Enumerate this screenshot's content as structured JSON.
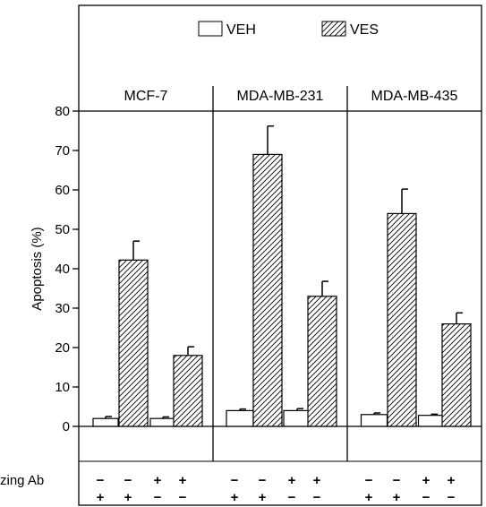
{
  "chart_data": {
    "type": "bar",
    "title": "",
    "ylabel": "Apoptosis (%)",
    "ylim": [
      0,
      80
    ],
    "yticks": [
      0,
      10,
      20,
      30,
      40,
      50,
      60,
      70,
      80
    ],
    "legend": {
      "placement": "top-center",
      "entries": [
        {
          "name": "VEH",
          "fill": "white"
        },
        {
          "name": "VES",
          "fill": "hatched"
        }
      ]
    },
    "row_labels": [
      "zing Ab",
      ""
    ],
    "conditions": [
      {
        "row1": "−",
        "row2": "+"
      },
      {
        "row1": "−",
        "row2": "+"
      },
      {
        "row1": "+",
        "row2": "−"
      },
      {
        "row1": "+",
        "row2": "−"
      }
    ],
    "bar_treatments": [
      "VEH",
      "VES",
      "VEH",
      "VES"
    ],
    "panels": [
      {
        "name": "MCF-7",
        "values": [
          2,
          42.2,
          2,
          18
        ],
        "errors": [
          0.5,
          4.8,
          0.4,
          2.2
        ]
      },
      {
        "name": "MDA-MB-231",
        "values": [
          4,
          69,
          4,
          33
        ],
        "errors": [
          0.4,
          7.2,
          0.5,
          3.8
        ]
      },
      {
        "name": "MDA-MB-435",
        "values": [
          3,
          54,
          2.8,
          26
        ],
        "errors": [
          0.4,
          6.2,
          0.3,
          2.8
        ]
      }
    ]
  }
}
